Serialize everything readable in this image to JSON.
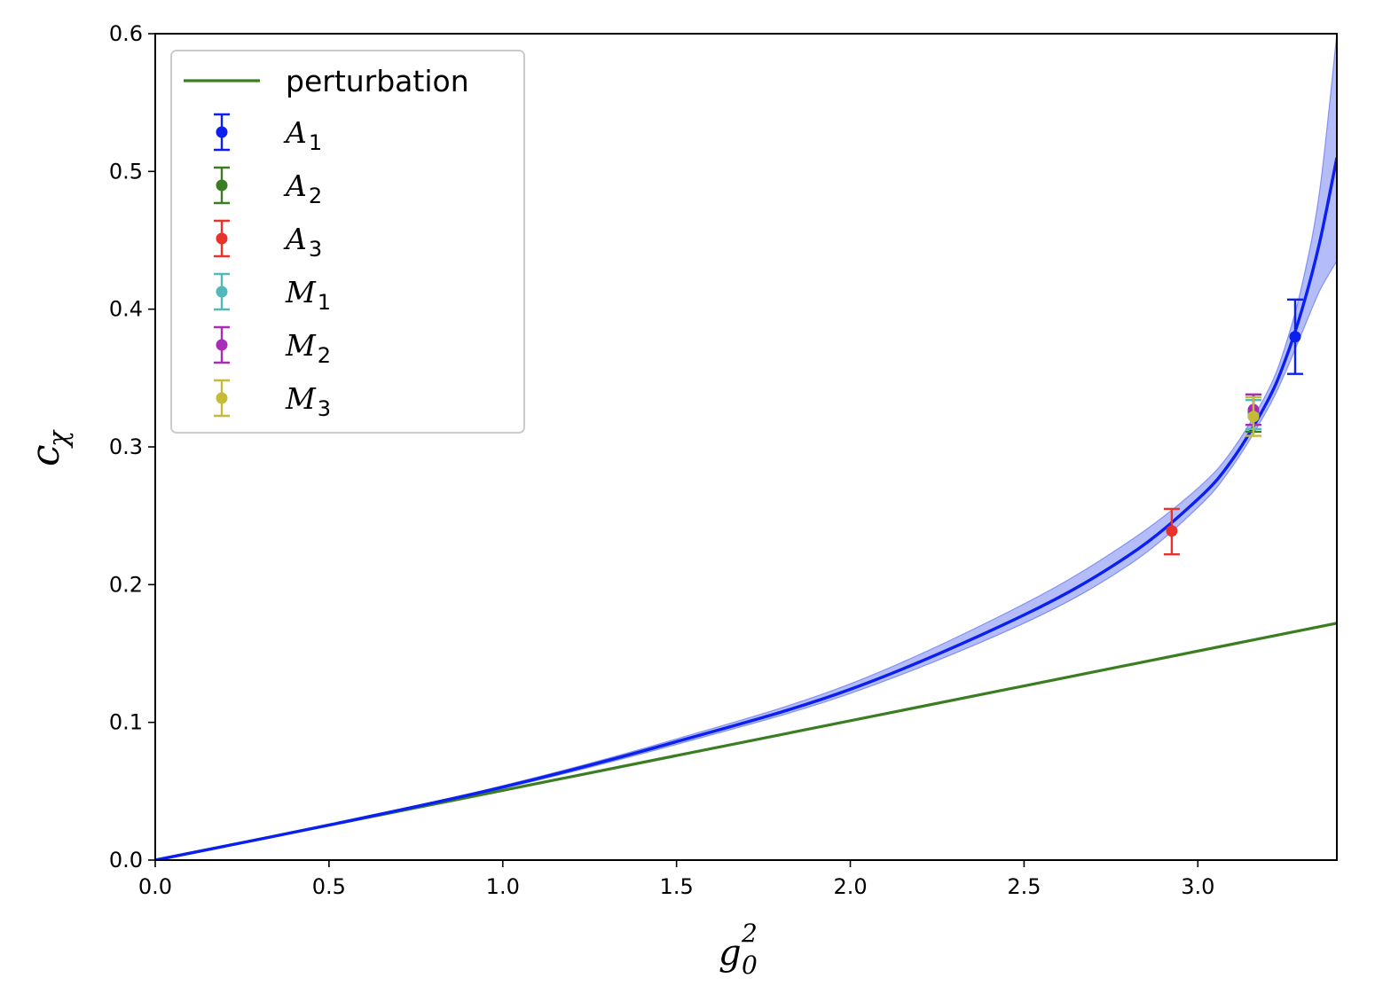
{
  "chart_data": {
    "type": "line",
    "xlim": [
      0.0,
      3.4
    ],
    "ylim": [
      0.0,
      0.6
    ],
    "x_ticks": [
      "0.0",
      "0.5",
      "1.0",
      "1.5",
      "2.0",
      "2.5",
      "3.0"
    ],
    "x_tick_values": [
      0.0,
      0.5,
      1.0,
      1.5,
      2.0,
      2.5,
      3.0
    ],
    "y_ticks": [
      "0.0",
      "0.1",
      "0.2",
      "0.3",
      "0.4",
      "0.5",
      "0.6"
    ],
    "y_tick_values": [
      0.0,
      0.1,
      0.2,
      0.3,
      0.4,
      0.5,
      0.6
    ],
    "xlabel": {
      "base": "g",
      "sub": "0",
      "sup": "2"
    },
    "ylabel": {
      "base": "c",
      "sub": "χ"
    },
    "grid": false,
    "legend_position": "upper-left",
    "series": [
      {
        "name": "perturbation",
        "type": "line",
        "color": "#3a7d22",
        "x": [
          0.0,
          3.4
        ],
        "y": [
          0.0,
          0.172
        ]
      },
      {
        "type": "fit",
        "color": "#0a1ff0",
        "band_color": "#4d62ee",
        "x": [
          0.0,
          0.5,
          1.0,
          1.5,
          2.0,
          2.5,
          2.8,
          3.0,
          3.1,
          3.2,
          3.25,
          3.3,
          3.35,
          3.4
        ],
        "y": [
          0.0,
          0.0255,
          0.053,
          0.086,
          0.124,
          0.178,
          0.221,
          0.262,
          0.291,
          0.333,
          0.362,
          0.4,
          0.448,
          0.51
        ],
        "band_lower": [
          0.0,
          0.0253,
          0.052,
          0.084,
          0.121,
          0.172,
          0.214,
          0.256,
          0.286,
          0.327,
          0.353,
          0.383,
          0.413,
          0.435
        ],
        "band_upper": [
          0.0,
          0.0257,
          0.054,
          0.088,
          0.128,
          0.186,
          0.231,
          0.27,
          0.298,
          0.34,
          0.372,
          0.418,
          0.485,
          0.6
        ]
      }
    ],
    "points": [
      {
        "name": "A",
        "sub": "1",
        "color": "#0a1ff0",
        "x": 3.28,
        "y": 0.38,
        "yerr_low": 0.353,
        "yerr_high": 0.407
      },
      {
        "name": "A",
        "sub": "2",
        "color": "#3a7d22",
        "x": 3.16,
        "y": 0.325,
        "yerr_low": 0.311,
        "yerr_high": 0.338
      },
      {
        "name": "A",
        "sub": "3",
        "color": "#e8322a",
        "x": 2.925,
        "y": 0.239,
        "yerr_low": 0.222,
        "yerr_high": 0.255
      },
      {
        "name": "M",
        "sub": "1",
        "color": "#52b9bb",
        "x": 3.16,
        "y": 0.323,
        "yerr_low": 0.313,
        "yerr_high": 0.334
      },
      {
        "name": "M",
        "sub": "2",
        "color": "#a82cb8",
        "x": 3.16,
        "y": 0.327,
        "yerr_low": 0.316,
        "yerr_high": 0.338
      },
      {
        "name": "M",
        "sub": "3",
        "color": "#c4bb38",
        "x": 3.16,
        "y": 0.322,
        "yerr_low": 0.308,
        "yerr_high": 0.336
      }
    ]
  }
}
